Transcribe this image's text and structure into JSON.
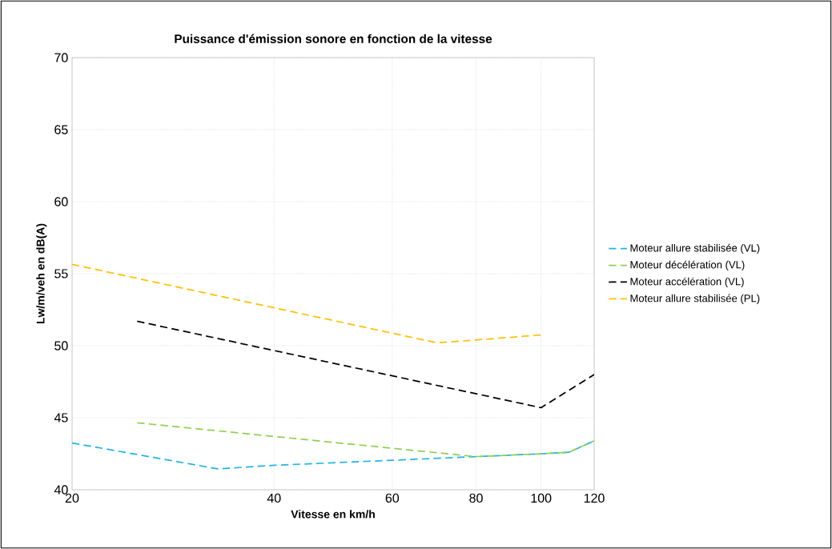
{
  "chart_data": {
    "type": "line",
    "title": "Puissance d'émission sonore en fonction de la vitesse",
    "xlabel": "Vitesse en km/h",
    "ylabel": "Lw/m/veh en dB(A)",
    "log": "x",
    "xlim": [
      20,
      120
    ],
    "xticks": [
      20,
      40,
      60,
      80,
      100,
      120
    ],
    "ylim": [
      40,
      70
    ],
    "yticks": [
      40,
      45,
      50,
      55,
      60,
      65,
      70
    ],
    "grid": true,
    "legend": "right",
    "line_style": "dashed",
    "marker": "none",
    "series": [
      {
        "name": "Moteur allure stabilisée (VL)",
        "color": "#1fb5e8",
        "x": [
          20,
          33,
          40,
          60,
          80,
          100,
          110,
          120
        ],
        "values": [
          43.25,
          41.45,
          41.7,
          42.05,
          42.3,
          42.5,
          42.6,
          43.4
        ]
      },
      {
        "name": "Moteur décélération (VL)",
        "color": "#8fd14f",
        "x": [
          25,
          80,
          100,
          110,
          120
        ],
        "values": [
          44.65,
          42.3,
          42.5,
          42.6,
          43.4
        ]
      },
      {
        "name": "Moteur accélération (VL)",
        "color": "#000000",
        "x": [
          25,
          100,
          120
        ],
        "values": [
          51.7,
          45.7,
          48.0
        ]
      },
      {
        "name": "Moteur allure stabilisée (PL)",
        "color": "#ffc000",
        "x": [
          20,
          70,
          80,
          100
        ],
        "values": [
          55.65,
          50.2,
          50.4,
          50.75
        ]
      }
    ]
  }
}
